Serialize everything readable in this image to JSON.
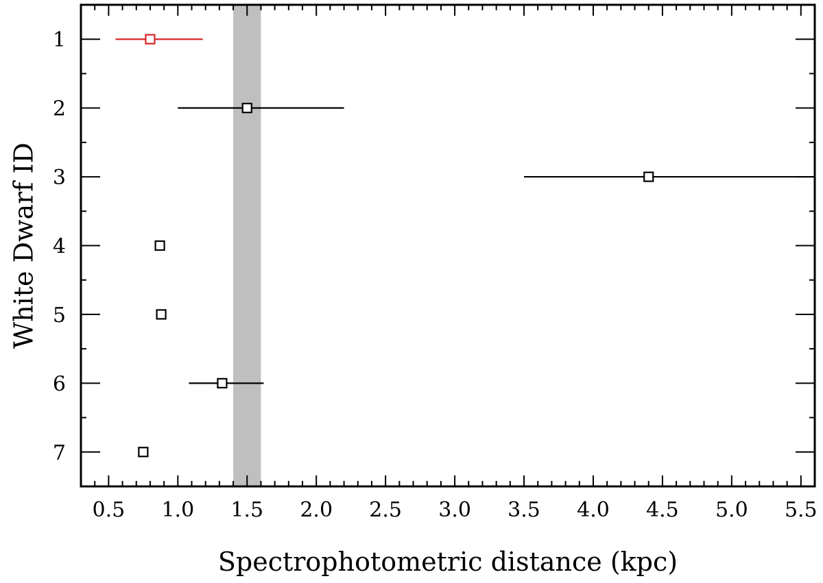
{
  "chart_data": {
    "type": "scatter",
    "xlabel": "Spectrophotometric distance (kpc)",
    "ylabel": "White Dwarf ID",
    "xlim": [
      0.3,
      5.6
    ],
    "ylim": [
      0.5,
      7.5
    ],
    "y_inverted": true,
    "grid": false,
    "x_major_ticks": [
      0.5,
      1.0,
      1.5,
      2.0,
      2.5,
      3.0,
      3.5,
      4.0,
      4.5,
      5.0,
      5.5
    ],
    "x_tick_labels": [
      "0.5",
      "1.0",
      "1.5",
      "2.0",
      "2.5",
      "3.0",
      "3.5",
      "4.0",
      "4.5",
      "5.0",
      "5.5"
    ],
    "y_major_ticks": [
      1,
      2,
      3,
      4,
      5,
      6,
      7
    ],
    "y_tick_labels": [
      "1",
      "2",
      "3",
      "4",
      "5",
      "6",
      "7"
    ],
    "shaded_band": {
      "x_from": 1.4,
      "x_to": 1.6,
      "color": "#bfbfbf"
    },
    "points": [
      {
        "id": 1,
        "x": 0.8,
        "xerr_low": 0.55,
        "xerr_high": 1.18,
        "color": "#d62728"
      },
      {
        "id": 2,
        "x": 1.5,
        "xerr_low": 1.0,
        "xerr_high": 2.2,
        "color": "#000000"
      },
      {
        "id": 3,
        "x": 4.4,
        "xerr_low": 3.5,
        "xerr_high": 5.6,
        "color": "#000000"
      },
      {
        "id": 4,
        "x": 0.87,
        "xerr_low": 0.84,
        "xerr_high": 0.9,
        "color": "#000000"
      },
      {
        "id": 5,
        "x": 0.88,
        "xerr_low": 0.86,
        "xerr_high": 0.9,
        "color": "#000000"
      },
      {
        "id": 6,
        "x": 1.32,
        "xerr_low": 1.08,
        "xerr_high": 1.62,
        "color": "#000000"
      },
      {
        "id": 7,
        "x": 0.75,
        "xerr_low": 0.75,
        "xerr_high": 0.75,
        "color": "#000000"
      }
    ]
  }
}
